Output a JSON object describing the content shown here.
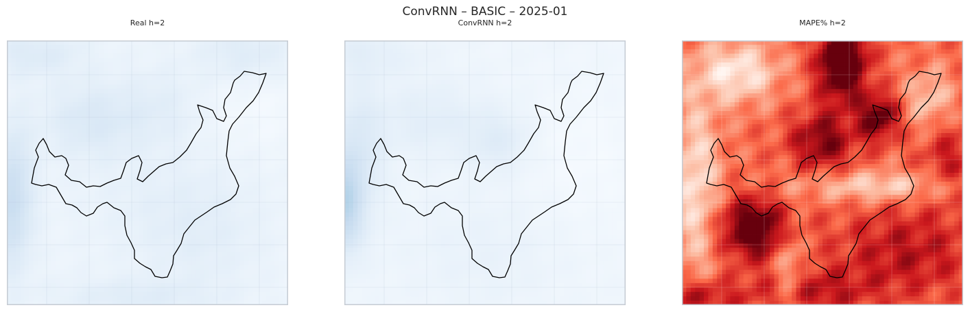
{
  "figure": {
    "title": "ConvRNN – BASIC – 2025-01"
  },
  "chart_data": [
    {
      "type": "heatmap",
      "title": "Real h=2",
      "colormap": "Blues",
      "palette": [
        "#f7fbff",
        "#deebf7",
        "#c6dbef",
        "#9ecae1",
        "#6baed6"
      ],
      "grid_size": [
        60,
        64
      ],
      "value_range": [
        0,
        1
      ],
      "axes": {
        "ticks_visible": false,
        "grid": true
      },
      "has_boundary_outline": true
    },
    {
      "type": "heatmap",
      "title": "ConvRNN h=2",
      "colormap": "Blues",
      "palette": [
        "#f7fbff",
        "#deebf7",
        "#c6dbef",
        "#9ecae1",
        "#6baed6"
      ],
      "grid_size": [
        60,
        64
      ],
      "value_range": [
        0,
        1
      ],
      "axes": {
        "ticks_visible": false,
        "grid": true
      },
      "has_boundary_outline": true
    },
    {
      "type": "heatmap",
      "title": "MAPE% h=2",
      "colormap": "Reds",
      "palette": [
        "#fff5f0",
        "#fcbba1",
        "#fb6a4a",
        "#cb181d",
        "#67000d"
      ],
      "grid_size": [
        60,
        64
      ],
      "value_range": [
        0,
        1
      ],
      "axes": {
        "ticks_visible": false,
        "grid": true
      },
      "has_boundary_outline": true
    }
  ]
}
